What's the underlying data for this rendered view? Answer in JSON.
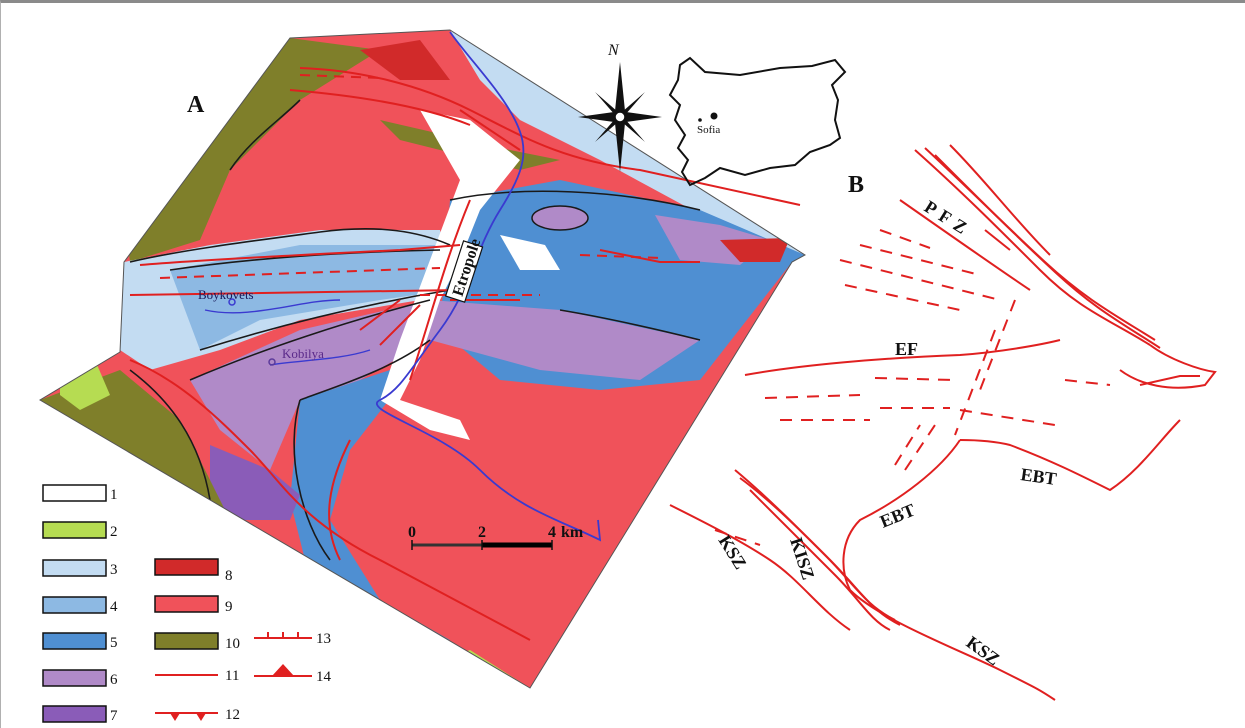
{
  "panels": {
    "a": "A",
    "b": "B"
  },
  "towns": [
    {
      "name": "Boykovets"
    },
    {
      "name": "Kobilya"
    }
  ],
  "river_label": "Etropole",
  "inset": {
    "city": "Sofia"
  },
  "compass": {
    "label": "N"
  },
  "scale_bar": {
    "ticks": [
      "0",
      "2",
      "4"
    ],
    "unit": "km"
  },
  "fault_labels": [
    "PFZ",
    "EF",
    "EBT",
    "EBT",
    "KISZ",
    "KSZ",
    "KSZ"
  ],
  "legend": [
    {
      "num": "1",
      "color": "#ffffff",
      "kind": "box"
    },
    {
      "num": "2",
      "color": "#b6dc52",
      "kind": "box"
    },
    {
      "num": "3",
      "color": "#c3dcf2",
      "kind": "box"
    },
    {
      "num": "4",
      "color": "#8db9e3",
      "kind": "box"
    },
    {
      "num": "5",
      "color": "#4f8fd2",
      "kind": "box"
    },
    {
      "num": "6",
      "color": "#b08ac8",
      "kind": "box"
    },
    {
      "num": "7",
      "color": "#8a5cb8",
      "kind": "box"
    },
    {
      "num": "8",
      "color": "#d12a2a",
      "kind": "box"
    },
    {
      "num": "9",
      "color": "#f0525a",
      "kind": "box"
    },
    {
      "num": "10",
      "color": "#7f7f2a",
      "kind": "box"
    },
    {
      "num": "11",
      "color": "#e02020",
      "kind": "line"
    },
    {
      "num": "12",
      "color": "#e02020",
      "kind": "thrust"
    },
    {
      "num": "13",
      "color": "#e02020",
      "kind": "normal"
    },
    {
      "num": "14",
      "color": "#e02020",
      "kind": "overthrust"
    }
  ],
  "colors": {
    "fault": "#e02020",
    "river": "#3a3ad0",
    "bg": "#ffffff"
  }
}
